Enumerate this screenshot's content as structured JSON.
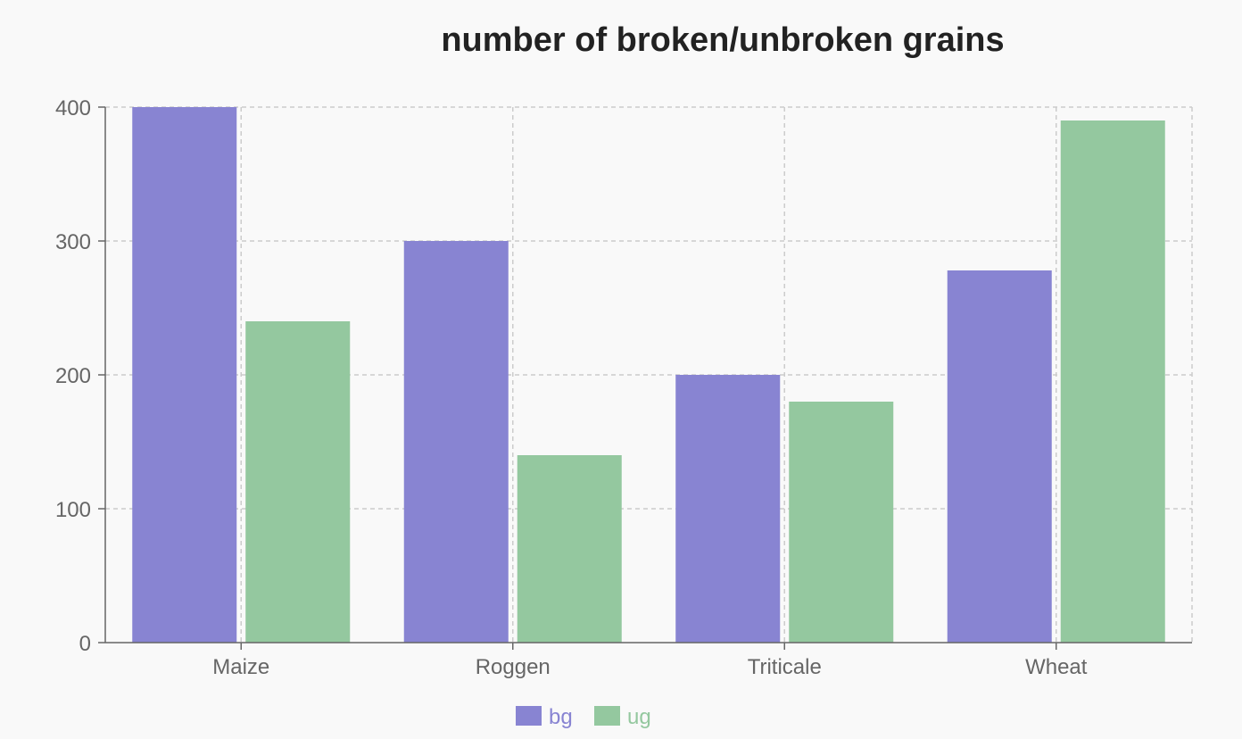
{
  "chart_data": {
    "type": "bar",
    "title": "number of broken/unbroken grains",
    "categories": [
      "Maize",
      "Roggen",
      "Triticale",
      "Wheat"
    ],
    "series": [
      {
        "name": "bg",
        "values": [
          400,
          300,
          200,
          278
        ],
        "color": "#8884d2"
      },
      {
        "name": "ug",
        "values": [
          240,
          140,
          180,
          390
        ],
        "color": "#94c89f"
      }
    ],
    "xlabel": "",
    "ylabel": "",
    "ylim": [
      0,
      400
    ],
    "yticks": [
      "0",
      "100",
      "200",
      "300",
      "400"
    ],
    "grid": true,
    "legend_position": "bottom"
  }
}
